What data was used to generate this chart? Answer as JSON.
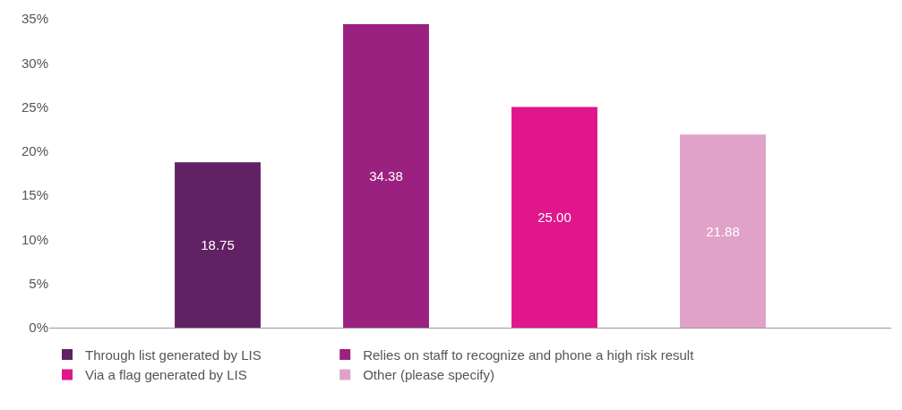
{
  "chart_data": {
    "type": "bar",
    "categories": [
      null
    ],
    "series": [
      {
        "name": "Through list generated by LIS",
        "color": "#622163",
        "values": [
          18.75
        ],
        "value_labels": [
          "18.75"
        ]
      },
      {
        "name": "Relies on staff to recognize and phone a high risk result",
        "color": "#9b2180",
        "values": [
          34.38
        ],
        "value_labels": [
          "34.38"
        ]
      },
      {
        "name": "Via a flag generated by LIS",
        "color": "#e0168a",
        "values": [
          25.0
        ],
        "value_labels": [
          "25.00"
        ]
      },
      {
        "name": "Other (please specify)",
        "color": "#e0a2c8",
        "values": [
          21.88
        ],
        "value_labels": [
          "21.88"
        ]
      }
    ],
    "ylim": [
      0,
      35
    ],
    "yticks": [
      {
        "value": 0,
        "label": "0%"
      },
      {
        "value": 5,
        "label": "5%"
      },
      {
        "value": 10,
        "label": "10%"
      },
      {
        "value": 15,
        "label": "15%"
      },
      {
        "value": 20,
        "label": "20%"
      },
      {
        "value": 25,
        "label": "25%"
      },
      {
        "value": 30,
        "label": "30%"
      },
      {
        "value": 35,
        "label": "35%"
      }
    ],
    "legend": "bottom"
  }
}
